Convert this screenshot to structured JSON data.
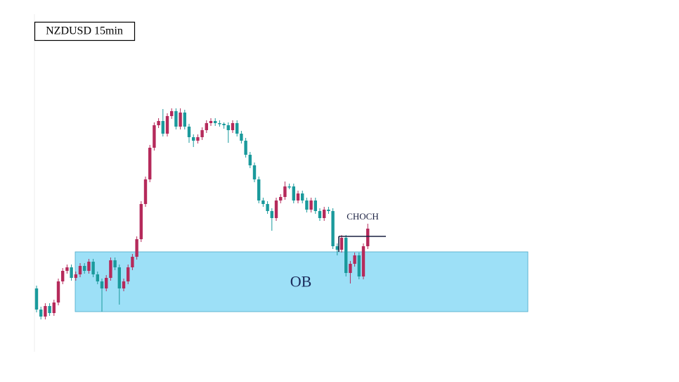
{
  "chart_data": {
    "type": "candlestick",
    "title": "NZDUSD 15min",
    "up_color": "#b52a5b",
    "down_color": "#1a9a9c",
    "ylim": [
      40,
      500
    ],
    "open": [
      133,
      103,
      93,
      108,
      98,
      113,
      143,
      158,
      163,
      148,
      153,
      165,
      158,
      171,
      153,
      143,
      133,
      148,
      173,
      163,
      133,
      143,
      163,
      178,
      203,
      253,
      288,
      333,
      365,
      371,
      353,
      378,
      385,
      363,
      383,
      363,
      348,
      343,
      348,
      358,
      368,
      371,
      368,
      367,
      365,
      358,
      368,
      353,
      343,
      323,
      308,
      288,
      258,
      253,
      243,
      233,
      258,
      263,
      278,
      278,
      258,
      268,
      258,
      245,
      258,
      243,
      233,
      245,
      243,
      193,
      188,
      205,
      155,
      168,
      180,
      150,
      193
    ],
    "high": [
      137,
      107,
      112,
      112,
      117,
      147,
      162,
      167,
      167,
      157,
      169,
      169,
      175,
      175,
      157,
      147,
      152,
      177,
      177,
      167,
      147,
      167,
      182,
      207,
      257,
      292,
      337,
      369,
      375,
      388,
      382,
      389,
      389,
      389,
      387,
      367,
      352,
      352,
      362,
      372,
      375,
      375,
      372,
      369,
      369,
      372,
      372,
      357,
      347,
      327,
      312,
      292,
      262,
      257,
      247,
      262,
      267,
      285,
      282,
      282,
      272,
      272,
      262,
      262,
      262,
      247,
      249,
      249,
      247,
      197,
      209,
      209,
      172,
      184,
      184,
      197,
      225
    ],
    "low": [
      99,
      89,
      89,
      94,
      94,
      109,
      139,
      154,
      144,
      144,
      149,
      154,
      154,
      149,
      139,
      100,
      129,
      144,
      159,
      110,
      129,
      139,
      159,
      174,
      199,
      249,
      284,
      329,
      361,
      349,
      349,
      374,
      359,
      359,
      359,
      340,
      334,
      339,
      344,
      354,
      364,
      364,
      363,
      360,
      340,
      354,
      349,
      339,
      319,
      304,
      284,
      254,
      249,
      239,
      215,
      229,
      254,
      259,
      274,
      254,
      254,
      254,
      241,
      241,
      239,
      229,
      229,
      239,
      189,
      180,
      184,
      150,
      140,
      164,
      146,
      146,
      189
    ],
    "close": [
      103,
      93,
      108,
      98,
      113,
      143,
      158,
      163,
      148,
      153,
      165,
      158,
      171,
      153,
      143,
      133,
      148,
      173,
      163,
      133,
      143,
      163,
      178,
      203,
      253,
      288,
      333,
      365,
      371,
      353,
      378,
      385,
      363,
      383,
      363,
      348,
      343,
      348,
      358,
      368,
      371,
      368,
      367,
      365,
      358,
      368,
      353,
      343,
      323,
      308,
      288,
      258,
      253,
      243,
      233,
      258,
      263,
      278,
      278,
      258,
      268,
      258,
      245,
      258,
      243,
      233,
      245,
      243,
      193,
      188,
      205,
      155,
      168,
      180,
      150,
      193,
      218
    ],
    "ob_zone": {
      "label": "OB",
      "low": 100,
      "high": 185,
      "color": "#9de0f7"
    },
    "choch": {
      "label": "CHOCH",
      "level": 207
    }
  }
}
